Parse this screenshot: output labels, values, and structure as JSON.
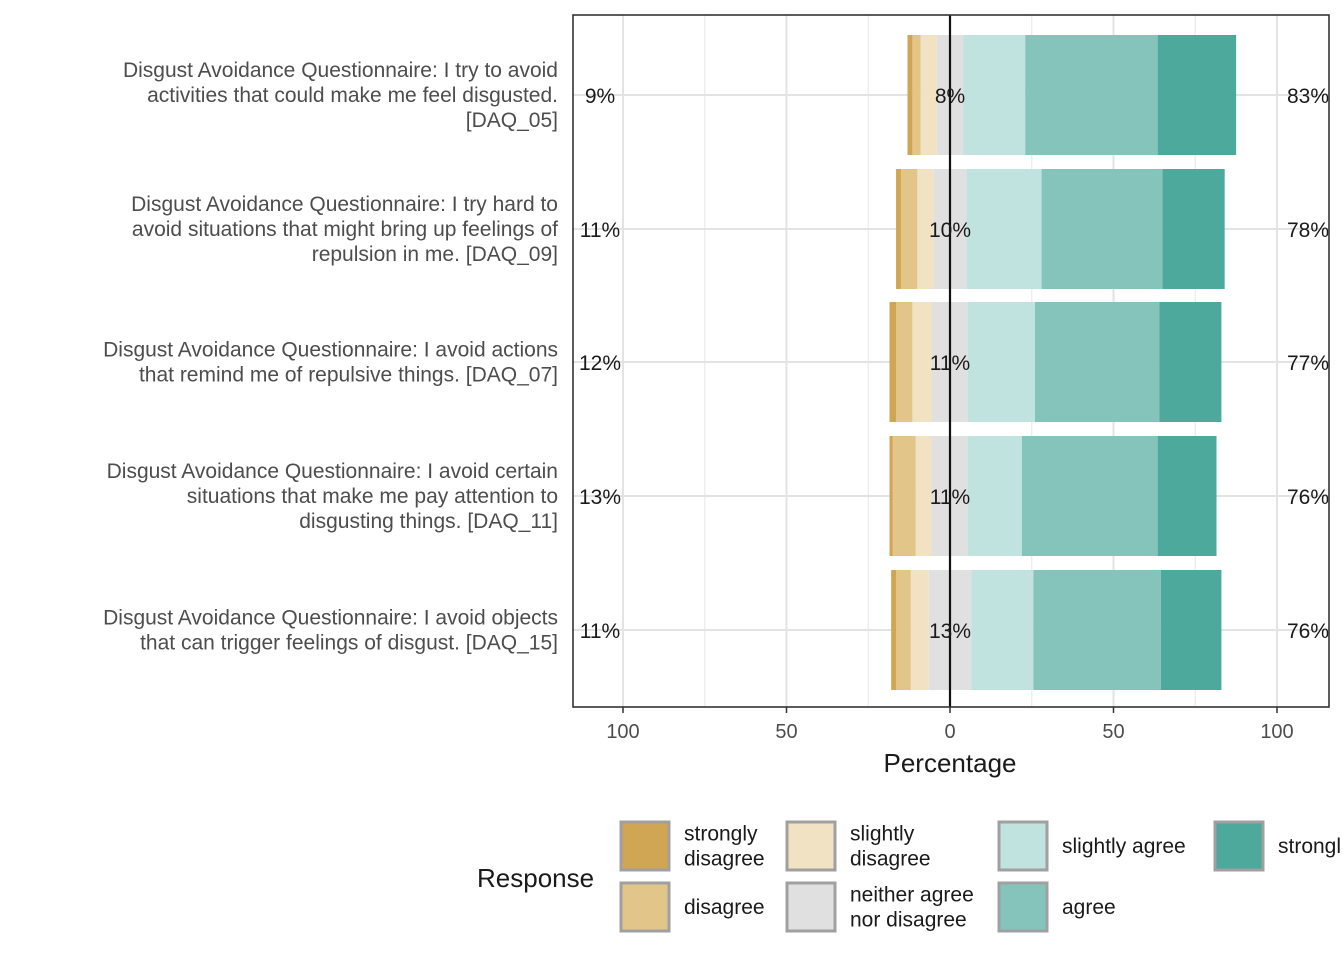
{
  "chart_data": {
    "type": "bar",
    "subtype": "diverging-stacked-likert",
    "xlabel": "Percentage",
    "xlim": [
      -100,
      100
    ],
    "xticks": [
      -100,
      -50,
      0,
      50,
      100
    ],
    "xtick_labels": [
      "100",
      "50",
      "0",
      "50",
      "100"
    ],
    "legend_title": "Response",
    "legend_position": "bottom",
    "grid": true,
    "levels": [
      {
        "label": "strongly disagree",
        "lines": [
          "strongly",
          "disagree"
        ],
        "color": "#D0A553"
      },
      {
        "label": "disagree",
        "lines": [
          "disagree"
        ],
        "color": "#E2C689"
      },
      {
        "label": "slightly disagree",
        "lines": [
          "slightly",
          "disagree"
        ],
        "color": "#F0E2C3"
      },
      {
        "label": "neither agree nor disagree",
        "lines": [
          "neither agree",
          "nor disagree"
        ],
        "color": "#E0E0E0"
      },
      {
        "label": "slightly agree",
        "lines": [
          "slightly agree"
        ],
        "color": "#C0E3E0"
      },
      {
        "label": "agree",
        "lines": [
          "agree"
        ],
        "color": "#84C4BA"
      },
      {
        "label": "strongly agree",
        "lines": [
          "strongl"
        ],
        "color": "#4CA99B"
      }
    ],
    "items": [
      {
        "label": [
          "Disgust Avoidance Questionnaire: I try to avoid",
          "activities that could make me feel disgusted.",
          "[DAQ_05]"
        ],
        "values": [
          1.5,
          2.5,
          5,
          8,
          19,
          40.5,
          24
        ],
        "low": "9%",
        "neutral": "8%",
        "high": "83%"
      },
      {
        "label": [
          "Disgust Avoidance Questionnaire: I try hard to",
          "avoid situations that might bring up feelings of",
          "repulsion in me. [DAQ_09]"
        ],
        "values": [
          1.5,
          5,
          5,
          10,
          23,
          37,
          19
        ],
        "low": "11%",
        "neutral": "10%",
        "high": "78%"
      },
      {
        "label": [
          "Disgust Avoidance Questionnaire: I avoid actions",
          "that remind me of repulsive things. [DAQ_07]"
        ],
        "values": [
          2,
          5,
          6,
          11,
          20.5,
          38,
          19
        ],
        "low": "12%",
        "neutral": "11%",
        "high": "77%"
      },
      {
        "label": [
          "Disgust Avoidance Questionnaire: I avoid certain",
          "situations that make me pay attention to",
          "disgusting things. [DAQ_11]"
        ],
        "values": [
          1,
          7,
          5,
          11,
          16.5,
          41.5,
          18
        ],
        "low": "13%",
        "neutral": "11%",
        "high": "76%"
      },
      {
        "label": [
          "Disgust Avoidance Questionnaire: I avoid objects",
          "that can trigger feelings of disgust. [DAQ_15]"
        ],
        "values": [
          1.5,
          4.5,
          5.5,
          13,
          19,
          39,
          18.5
        ],
        "low": "11%",
        "neutral": "13%",
        "high": "76%"
      }
    ]
  }
}
